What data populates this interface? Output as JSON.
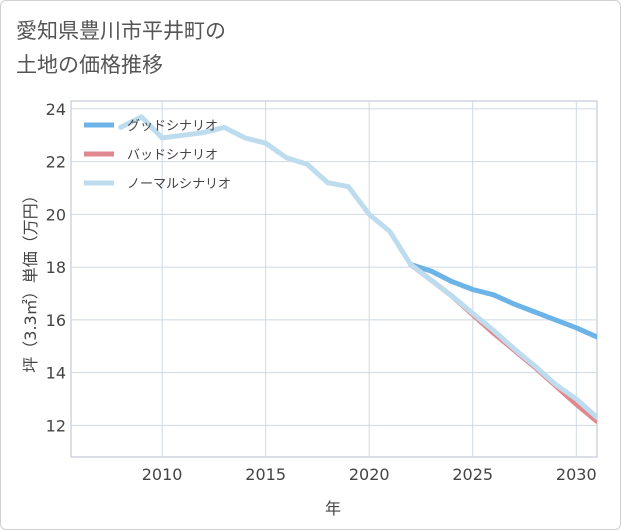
{
  "title_line1": "愛知県豊川市平井町の",
  "title_line2": "土地の価格推移",
  "chart_data": {
    "type": "line",
    "xlabel": "年",
    "ylabel": "坪（3.3㎡）単価（万円）",
    "xlim": [
      2005.6,
      2031
    ],
    "ylim": [
      10.8,
      24.3
    ],
    "xticks": [
      2010,
      2015,
      2020,
      2025,
      2030
    ],
    "yticks": [
      12,
      14,
      16,
      18,
      20,
      22,
      24
    ],
    "legend_position": "top-left",
    "series": [
      {
        "name": "グッドシナリオ",
        "color": "#6cb4e8",
        "x": [
          2022,
          2023,
          2024,
          2025,
          2026,
          2027,
          2028,
          2029,
          2030,
          2031
        ],
        "y": [
          18.1,
          17.85,
          17.45,
          17.15,
          16.95,
          16.6,
          16.3,
          16.0,
          15.7,
          15.35
        ]
      },
      {
        "name": "バッドシナリオ",
        "color": "#e0878f",
        "x": [
          2022,
          2023,
          2024,
          2025,
          2026,
          2027,
          2028,
          2029,
          2030,
          2031
        ],
        "y": [
          18.1,
          17.5,
          16.9,
          16.2,
          15.5,
          14.85,
          14.2,
          13.5,
          12.8,
          12.15
        ]
      },
      {
        "name": "ノーマルシナリオ",
        "color": "#bddcee",
        "x": [
          2008,
          2009,
          2010,
          2011,
          2012,
          2013,
          2014,
          2015,
          2016,
          2017,
          2018,
          2019,
          2020,
          2021,
          2022,
          2023,
          2024,
          2025,
          2026,
          2027,
          2028,
          2029,
          2030,
          2031
        ],
        "y": [
          23.3,
          23.7,
          22.9,
          23.0,
          23.1,
          23.3,
          22.9,
          22.7,
          22.15,
          21.9,
          21.2,
          21.05,
          20.0,
          19.35,
          18.1,
          17.5,
          16.9,
          16.25,
          15.6,
          14.9,
          14.25,
          13.55,
          13.0,
          12.3
        ]
      }
    ]
  }
}
